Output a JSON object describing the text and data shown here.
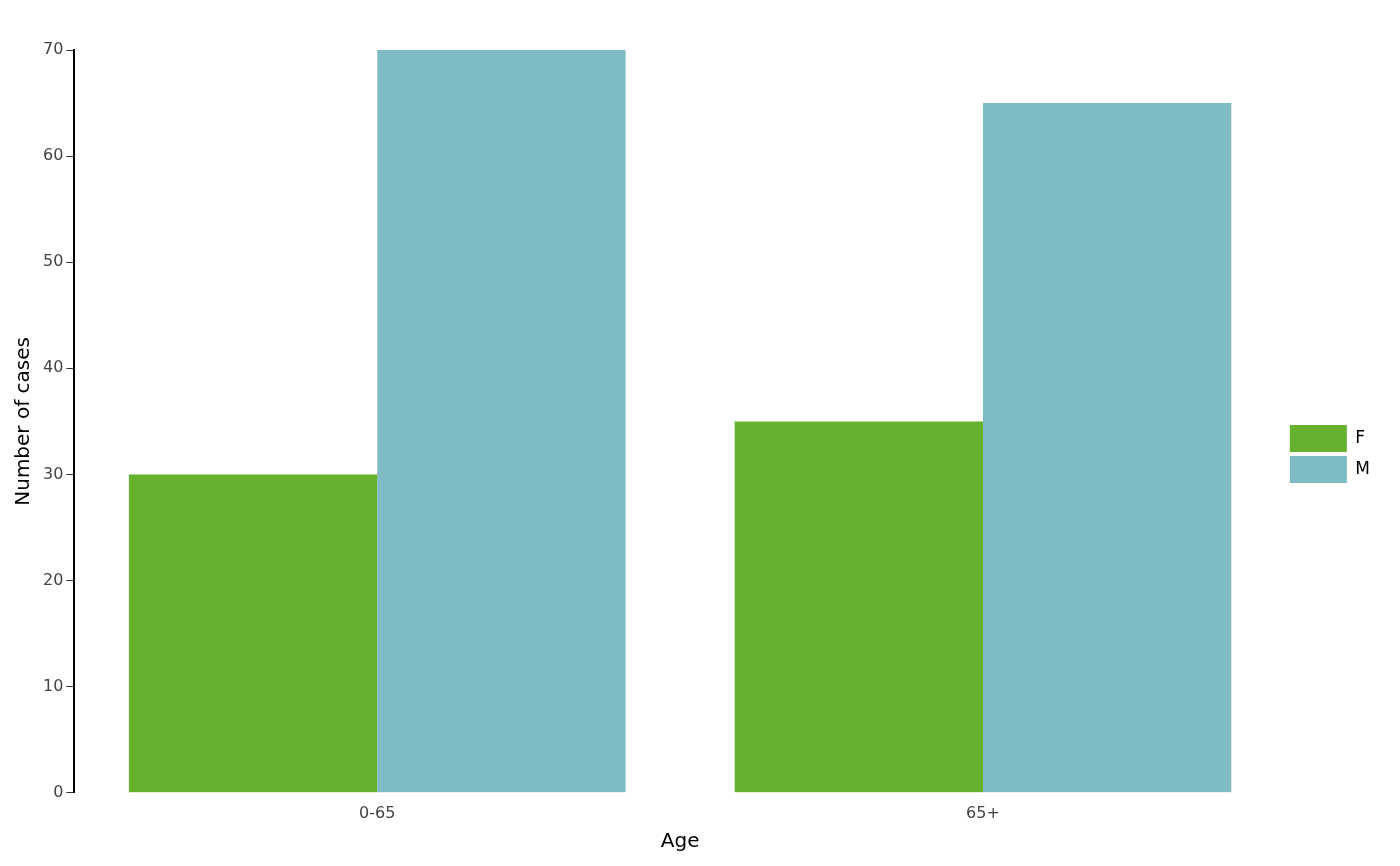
{
  "chart_data": {
    "type": "bar",
    "xlabel": "Age",
    "ylabel": "Number of cases",
    "categories": [
      "0-65",
      "65+"
    ],
    "series": [
      {
        "name": "F",
        "color": "#66b22f",
        "values": [
          30,
          35
        ]
      },
      {
        "name": "M",
        "color": "#7ebbc2",
        "values": [
          70,
          65
        ]
      }
    ],
    "ylim": [
      0,
      70
    ],
    "yticks": [
      0,
      10,
      20,
      30,
      40,
      50,
      60,
      70
    ],
    "grid": false,
    "legend": "right"
  }
}
